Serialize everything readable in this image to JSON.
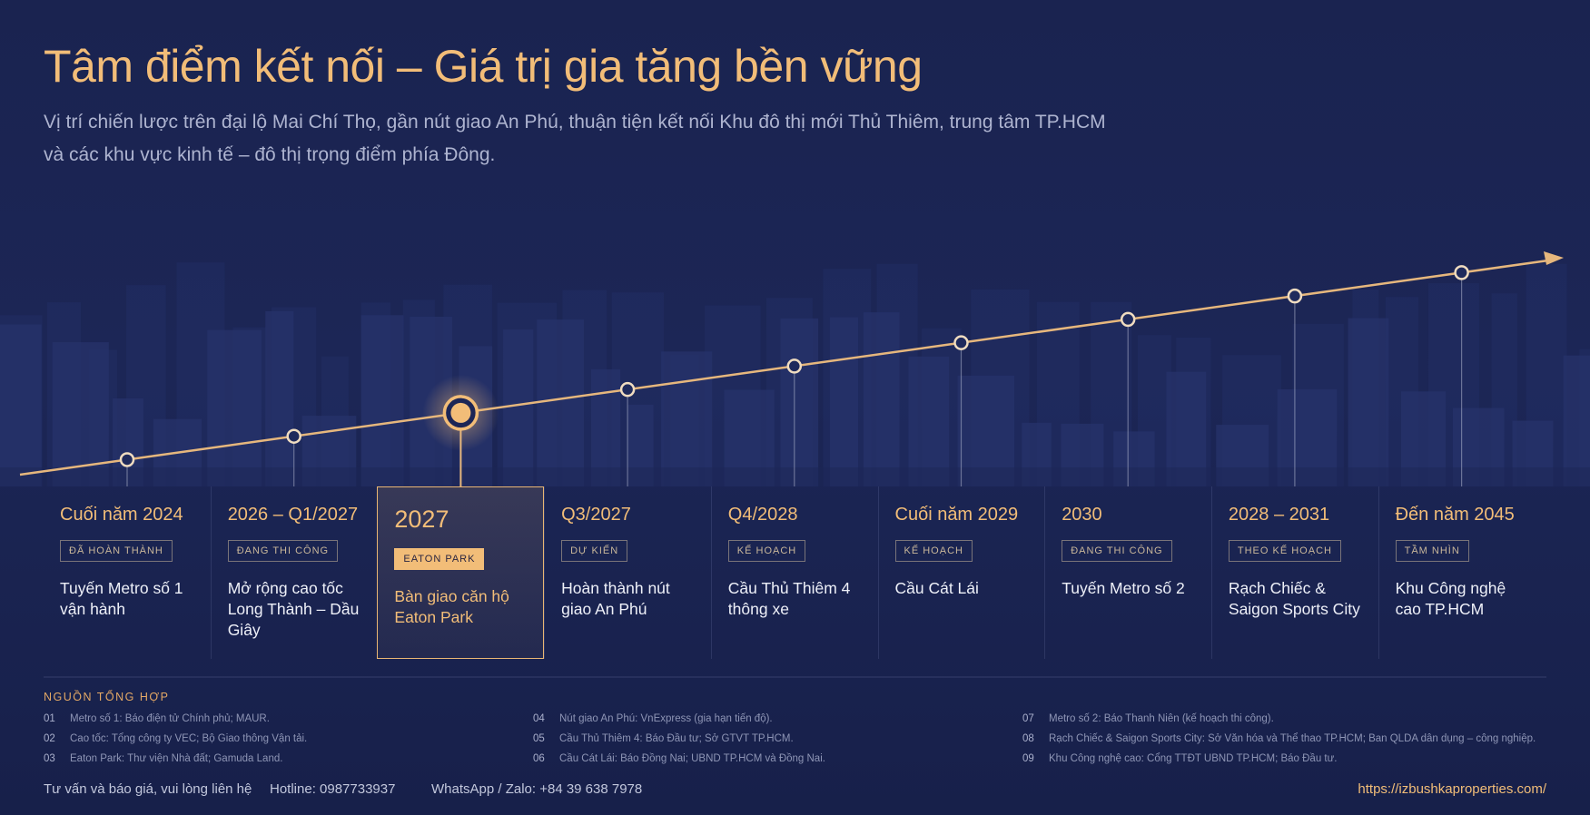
{
  "header": {
    "title": "Tâm điểm kết nối – Giá trị gia tăng bền vững",
    "subtitle_lines": [
      "Vị trí chiến lược trên đại lộ Mai Chí Thọ, gần nút giao An Phú, thuận tiện kết nối Khu đô thị mới Thủ Thiêm, trung tâm TP.HCM",
      "và các khu vực kinh tế – đô thị trọng điểm phía Đông."
    ]
  },
  "timeline": [
    {
      "date": "Cuối năm 2024",
      "status": "ĐÃ HOÀN THÀNH",
      "label": "Tuyến Metro số 1 vận hành"
    },
    {
      "date": "2026 – Q1/2027",
      "status": "ĐANG THI CÔNG",
      "label": "Mở rộng cao tốc Long Thành – Dầu Giây"
    },
    {
      "date": "2027",
      "status": "EATON PARK",
      "label": "Bàn giao căn hộ Eaton Park",
      "featured": true
    },
    {
      "date": "Q3/2027",
      "status": "DỰ KIẾN",
      "label": "Hoàn thành nút giao An Phú"
    },
    {
      "date": "Q4/2028",
      "status": "KẾ HOẠCH",
      "label": "Cầu Thủ Thiêm 4 thông xe"
    },
    {
      "date": "Cuối năm 2029",
      "status": "KẾ HOẠCH",
      "label": "Cầu Cát Lái"
    },
    {
      "date": "2030",
      "status": "ĐANG THI CÔNG",
      "label": "Tuyến Metro số 2"
    },
    {
      "date": "2028 – 2031",
      "status": "THEO KẾ HOẠCH",
      "label": "Rạch Chiếc & Saigon Sports City"
    },
    {
      "date": "Đến năm 2045",
      "status": "TẦM NHÌN",
      "label": "Khu Công nghệ cao TP.HCM"
    }
  ],
  "sources": {
    "title": "NGUỒN TỔNG HỢP",
    "items": [
      {
        "num": "01",
        "text": "Metro số 1: Báo điện tử Chính phủ; MAUR."
      },
      {
        "num": "02",
        "text": "Cao tốc: Tổng công ty VEC; Bộ Giao thông Vận tải."
      },
      {
        "num": "03",
        "text": "Eaton Park: Thư viện Nhà đất; Gamuda Land."
      },
      {
        "num": "04",
        "text": "Nút giao An Phú: VnExpress (gia hạn tiến độ)."
      },
      {
        "num": "05",
        "text": "Cầu Thủ Thiêm 4: Báo Đầu tư; Sở GTVT TP.HCM."
      },
      {
        "num": "06",
        "text": "Cầu Cát Lái: Báo Đồng Nai; UBND TP.HCM và Đồng Nai."
      },
      {
        "num": "07",
        "text": "Metro số 2: Báo Thanh Niên (kế hoạch thi công)."
      },
      {
        "num": "08",
        "text": "Rạch Chiếc & Saigon Sports City: Sở Văn hóa và Thể thao TP.HCM; Ban QLDA dân dụng – công nghiệp."
      },
      {
        "num": "09",
        "text": "Khu Công nghệ cao: Cổng TTĐT UBND TP.HCM; Báo Đầu tư."
      }
    ]
  },
  "footer": {
    "contact": "Tư vấn và báo giá, vui lòng liên hệ",
    "hotline": "Hotline: 0987733937",
    "whatsapp": "WhatsApp / Zalo: +84 39 638 7978",
    "website": "https://izbushkaproperties.com/"
  }
}
